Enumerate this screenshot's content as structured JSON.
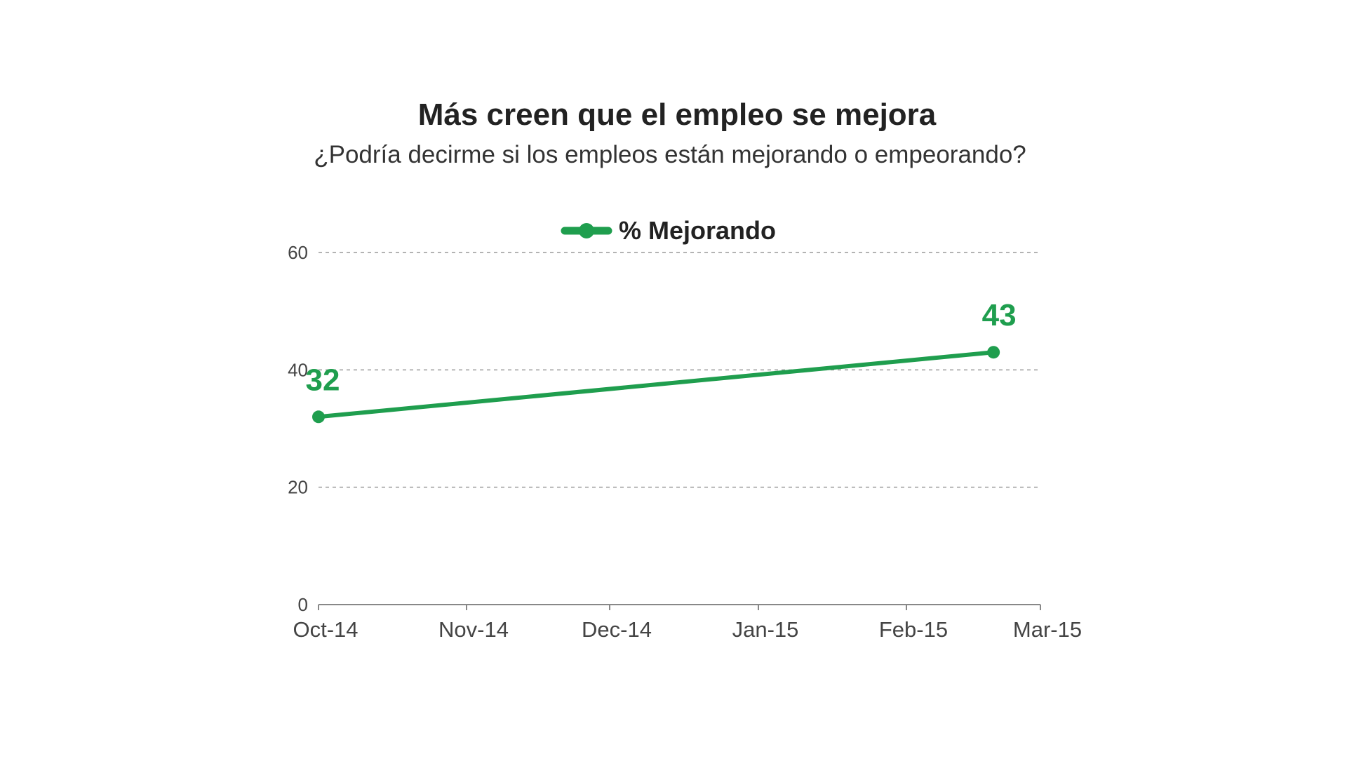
{
  "chart_data": {
    "type": "line",
    "title": "Más creen que el empleo se mejora",
    "subtitle": "¿Podría decirme si los empleos están mejorando o empeorando?",
    "xlabel": "",
    "ylabel": "",
    "x_ticks": [
      "Oct-14",
      "Nov-14",
      "Dec-14",
      "Jan-15",
      "Feb-15",
      "Mar-15"
    ],
    "y_ticks": [
      "0",
      "20",
      "40",
      "60"
    ],
    "ylim": [
      0,
      60
    ],
    "grid": true,
    "legend_position": "top-center",
    "series": [
      {
        "name": "% Mejorando",
        "color": "#1f9e4e",
        "points": [
          {
            "x": "2014-10",
            "y": 32,
            "label": "32"
          },
          {
            "x": "2015-02 (late)",
            "y": 43,
            "label": "43"
          }
        ]
      }
    ]
  }
}
